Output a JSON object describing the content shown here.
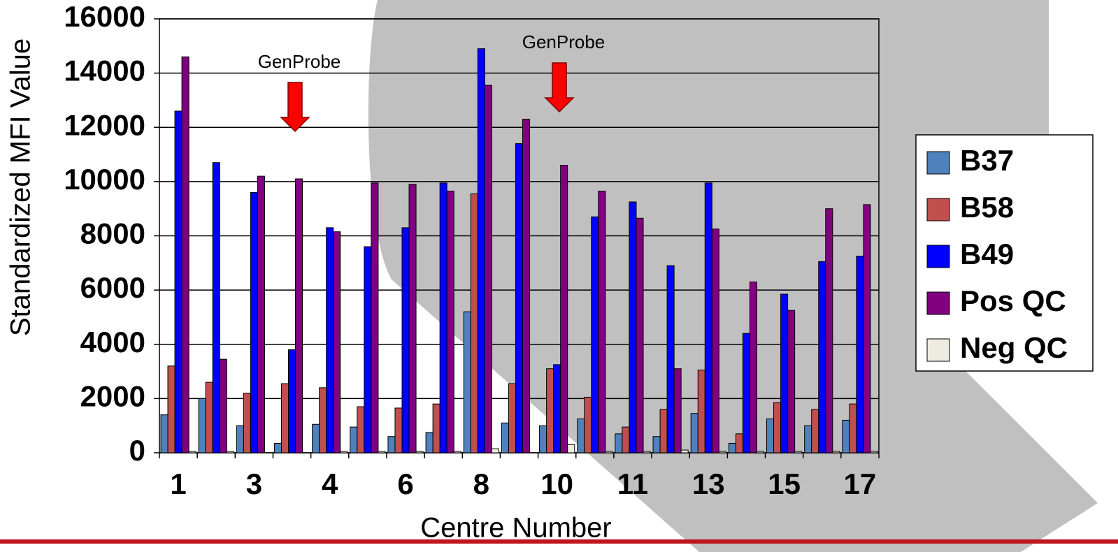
{
  "chart_data": {
    "type": "bar",
    "y_label": "Standardized MFI Value",
    "x_label": "Centre Number",
    "categories": [
      "1",
      null,
      "3",
      null,
      "4",
      null,
      "6",
      null,
      "8",
      null,
      "10",
      null,
      "11",
      null,
      "13",
      null,
      "15",
      null,
      "17"
    ],
    "series": [
      {
        "name": "B37",
        "color": "#4f81bd",
        "values": [
          1400,
          2000,
          1000,
          350,
          1050,
          950,
          600,
          750,
          5200,
          1100,
          1000,
          1250,
          700,
          600,
          1450,
          350,
          1250,
          1000,
          1200
        ]
      },
      {
        "name": "B58",
        "color": "#c0504d",
        "values": [
          3200,
          2600,
          2200,
          2550,
          2400,
          1700,
          1650,
          1800,
          9550,
          2550,
          3100,
          2050,
          950,
          1600,
          3050,
          700,
          1850,
          1600,
          1800
        ]
      },
      {
        "name": "B49",
        "color": "#0000ff",
        "values": [
          12600,
          10700,
          9600,
          3800,
          8300,
          7600,
          8300,
          9950,
          14900,
          11400,
          3250,
          8700,
          9250,
          6900,
          9950,
          4400,
          5850,
          7050,
          7250
        ]
      },
      {
        "name": "Pos QC",
        "color": "#800080",
        "values": [
          14600,
          3450,
          10200,
          10100,
          8150,
          9950,
          9900,
          9650,
          13550,
          12300,
          10600,
          9650,
          8650,
          3100,
          8250,
          6300,
          5250,
          9000,
          9150
        ]
      },
      {
        "name": "Neg QC",
        "color": "#eeece1",
        "values": [
          50,
          50,
          0,
          0,
          50,
          50,
          50,
          50,
          150,
          0,
          300,
          50,
          50,
          100,
          50,
          50,
          50,
          50,
          50
        ]
      }
    ],
    "annotations": [
      "GenProbe",
      "GenProbe"
    ],
    "ylim": [
      0,
      16000
    ],
    "yticks": [
      0,
      2000,
      4000,
      6000,
      8000,
      10000,
      12000,
      14000,
      16000
    ],
    "grid": true
  }
}
